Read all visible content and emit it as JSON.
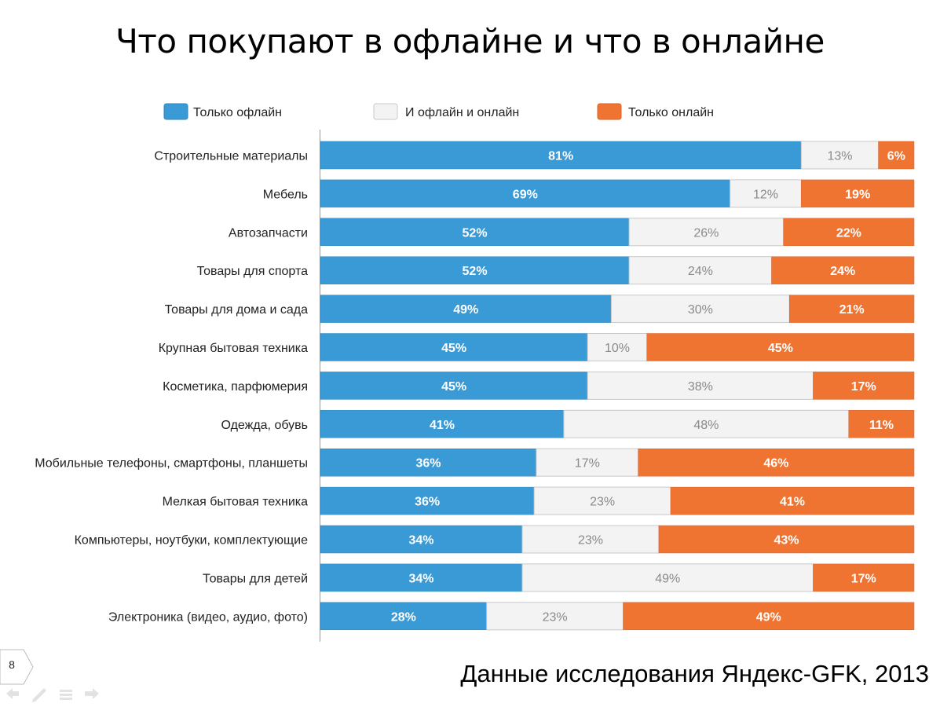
{
  "slide": {
    "title": "Что покупают в офлайне и что в онлайне",
    "source_note": "Данные исследования Яндекс-GFK, 2013",
    "page_number": "8"
  },
  "colors": {
    "offline": "#3a9ad6",
    "both": "#f3f3f3",
    "online": "#f07431",
    "axis": "#999999"
  },
  "chart_data": {
    "type": "bar",
    "orientation": "horizontal",
    "stacked": true,
    "xlim": [
      0,
      100
    ],
    "legend_position": "top",
    "categories": [
      "Строительные материалы",
      "Мебель",
      "Автозапчасти",
      "Товары для спорта",
      "Товары для дома и сада",
      "Крупная бытовая техника",
      "Косметика, парфюмерия",
      "Одежда, обувь",
      "Мобильные телефоны, смартфоны, планшеты",
      "Мелкая бытовая техника",
      "Компьютеры, ноутбуки, комплектующие",
      "Товары для детей",
      "Электроника (видео, аудио, фото)"
    ],
    "series": [
      {
        "name": "Только офлайн",
        "values": [
          81,
          69,
          52,
          52,
          49,
          45,
          45,
          41,
          36,
          36,
          34,
          34,
          28
        ]
      },
      {
        "name": "И офлайн и онлайн",
        "values": [
          13,
          12,
          26,
          24,
          30,
          10,
          38,
          48,
          17,
          23,
          23,
          49,
          23
        ]
      },
      {
        "name": "Только онлайн",
        "values": [
          6,
          19,
          22,
          24,
          21,
          45,
          17,
          11,
          46,
          41,
          43,
          17,
          49
        ]
      }
    ],
    "value_labels": [
      [
        "81%",
        "13%",
        "6%"
      ],
      [
        "69%",
        "12%",
        "19%"
      ],
      [
        "52%",
        "26%",
        "22%"
      ],
      [
        "52%",
        "24%",
        "24%"
      ],
      [
        "49%",
        "30%",
        "21%"
      ],
      [
        "45%",
        "10%",
        "45%"
      ],
      [
        "45%",
        "38%",
        "17%"
      ],
      [
        "41%",
        "48%",
        "11%"
      ],
      [
        "36%",
        "17%",
        "46%"
      ],
      [
        "36%",
        "23%",
        "41%"
      ],
      [
        "34%",
        "23%",
        "43%"
      ],
      [
        "34%",
        "49%",
        "17%"
      ],
      [
        "28%",
        "23%",
        "49%"
      ]
    ]
  }
}
